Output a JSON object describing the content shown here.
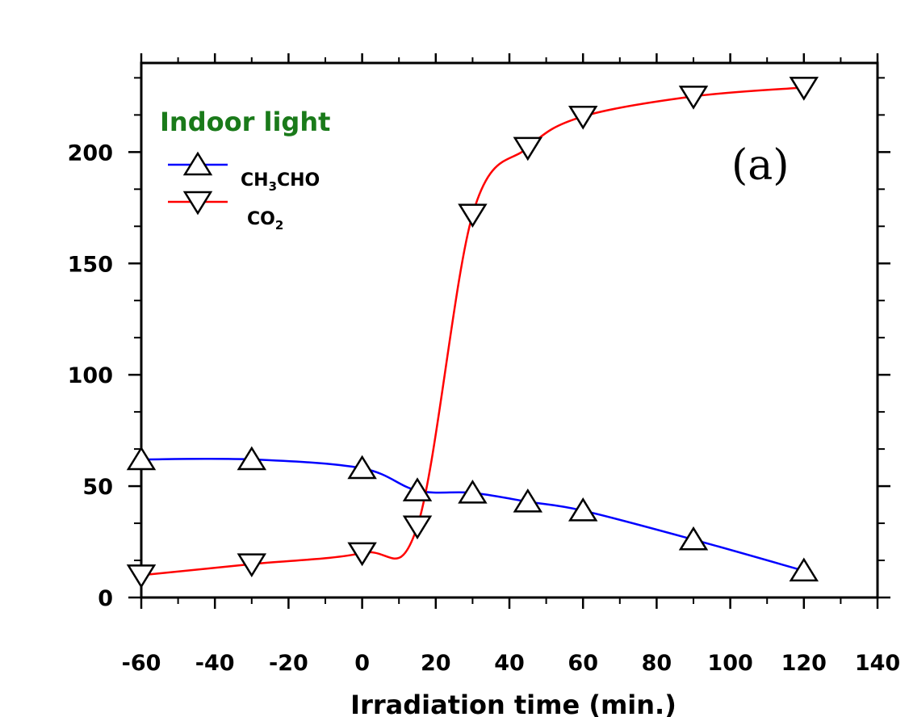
{
  "chart_data": {
    "type": "line",
    "title": "Indoor light",
    "panel_label": "(a)",
    "xlabel": "Irradiation time (min.)",
    "ylabel": "",
    "xlim": [
      -60,
      140
    ],
    "ylim": [
      0,
      240
    ],
    "x_ticks": [
      -60,
      -40,
      -20,
      0,
      20,
      40,
      60,
      80,
      100,
      120,
      140
    ],
    "y_ticks": [
      0,
      50,
      100,
      150,
      200
    ],
    "series": [
      {
        "name": "CH3CHO",
        "legend_main": "CH",
        "legend_sub": "3",
        "legend_tail": "CHO",
        "color": "#0000ff",
        "marker": "triangle-up",
        "x": [
          -60,
          -30,
          0,
          15,
          30,
          45,
          60,
          90,
          120
        ],
        "y": [
          62,
          62,
          58,
          48,
          47,
          43,
          39,
          26,
          12
        ]
      },
      {
        "name": "CO2",
        "legend_main": "CO",
        "legend_sub": "2",
        "legend_tail": "",
        "color": "#ff0000",
        "marker": "triangle-down",
        "x": [
          -60,
          -30,
          0,
          15,
          30,
          45,
          60,
          90,
          120
        ],
        "y": [
          10,
          15,
          20,
          32,
          172,
          202,
          216,
          225,
          229
        ]
      }
    ]
  }
}
